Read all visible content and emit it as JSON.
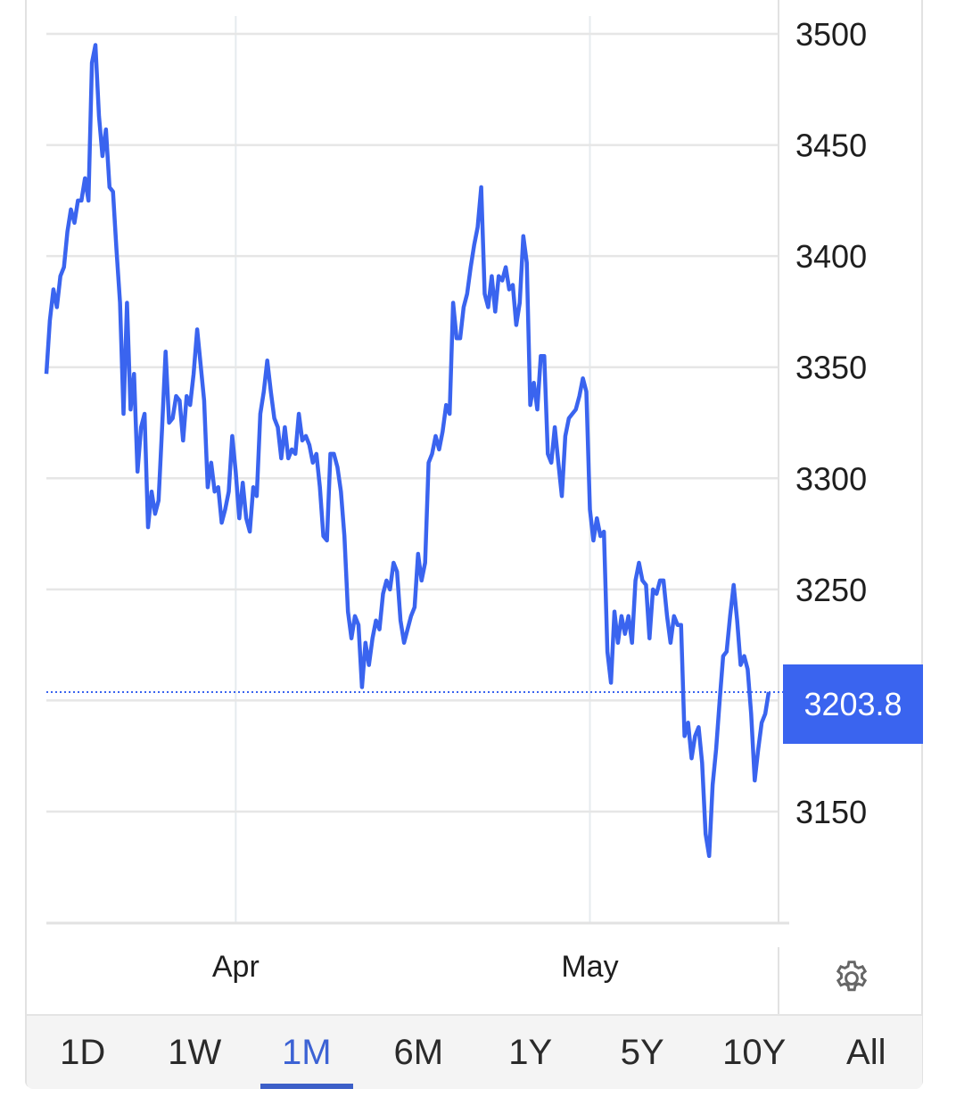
{
  "chart_data": {
    "type": "line",
    "ylim": [
      3100,
      3500
    ],
    "yticks": [
      3150,
      3200,
      3250,
      3300,
      3350,
      3400,
      3450,
      3500
    ],
    "ytick_labels": [
      "3150",
      "3250",
      "3300",
      "3350",
      "3400",
      "3450",
      "3500"
    ],
    "xticks": [
      {
        "label": "Apr",
        "at_index": 54
      },
      {
        "label": "May",
        "at_index": 155
      }
    ],
    "grid": true,
    "line_color": "#3a64ef",
    "last_value": 3203.8,
    "last_value_label": "3203.8",
    "values": [
      3347,
      3371,
      3385,
      3377,
      3391,
      3395,
      3411,
      3421,
      3415,
      3425,
      3425,
      3435,
      3425,
      3487,
      3495,
      3463,
      3445,
      3457,
      3431,
      3429,
      3403,
      3379,
      3329,
      3379,
      3331,
      3347,
      3303,
      3323,
      3329,
      3278,
      3294,
      3284,
      3290,
      3323,
      3357,
      3325,
      3327,
      3337,
      3335,
      3317,
      3337,
      3333,
      3347,
      3367,
      3351,
      3335,
      3296,
      3307,
      3294,
      3296,
      3280,
      3286,
      3294,
      3319,
      3303,
      3282,
      3298,
      3282,
      3276,
      3296,
      3292,
      3329,
      3339,
      3353,
      3339,
      3327,
      3323,
      3309,
      3323,
      3309,
      3313,
      3311,
      3329,
      3317,
      3319,
      3315,
      3307,
      3311,
      3296,
      3274,
      3272,
      3311,
      3311,
      3305,
      3294,
      3274,
      3240,
      3228,
      3238,
      3234,
      3206,
      3226,
      3216,
      3228,
      3236,
      3232,
      3248,
      3254,
      3250,
      3262,
      3258,
      3236,
      3226,
      3232,
      3238,
      3242,
      3266,
      3254,
      3262,
      3307,
      3311,
      3319,
      3313,
      3321,
      3333,
      3329,
      3379,
      3363,
      3363,
      3377,
      3383,
      3395,
      3405,
      3413,
      3431,
      3383,
      3377,
      3391,
      3375,
      3391,
      3389,
      3395,
      3385,
      3387,
      3369,
      3379,
      3409,
      3397,
      3333,
      3343,
      3331,
      3355,
      3355,
      3311,
      3307,
      3323,
      3307,
      3292,
      3319,
      3327,
      3329,
      3331,
      3337,
      3345,
      3339,
      3286,
      3272,
      3282,
      3274,
      3276,
      3222,
      3208,
      3240,
      3226,
      3238,
      3230,
      3238,
      3226,
      3254,
      3262,
      3254,
      3252,
      3228,
      3250,
      3248,
      3254,
      3254,
      3238,
      3226,
      3238,
      3234,
      3234,
      3184,
      3190,
      3174,
      3184,
      3188,
      3172,
      3140,
      3130,
      3162,
      3178,
      3200,
      3220,
      3222,
      3238,
      3252,
      3236,
      3216,
      3220,
      3214,
      3194,
      3164,
      3178,
      3190,
      3194,
      3203.8
    ]
  },
  "tabs": [
    {
      "label": "1D",
      "active": false
    },
    {
      "label": "1W",
      "active": false
    },
    {
      "label": "1M",
      "active": true
    },
    {
      "label": "6M",
      "active": false
    },
    {
      "label": "1Y",
      "active": false
    },
    {
      "label": "5Y",
      "active": false
    },
    {
      "label": "10Y",
      "active": false
    },
    {
      "label": "All",
      "active": false
    }
  ],
  "settings_icon": "gear-icon"
}
